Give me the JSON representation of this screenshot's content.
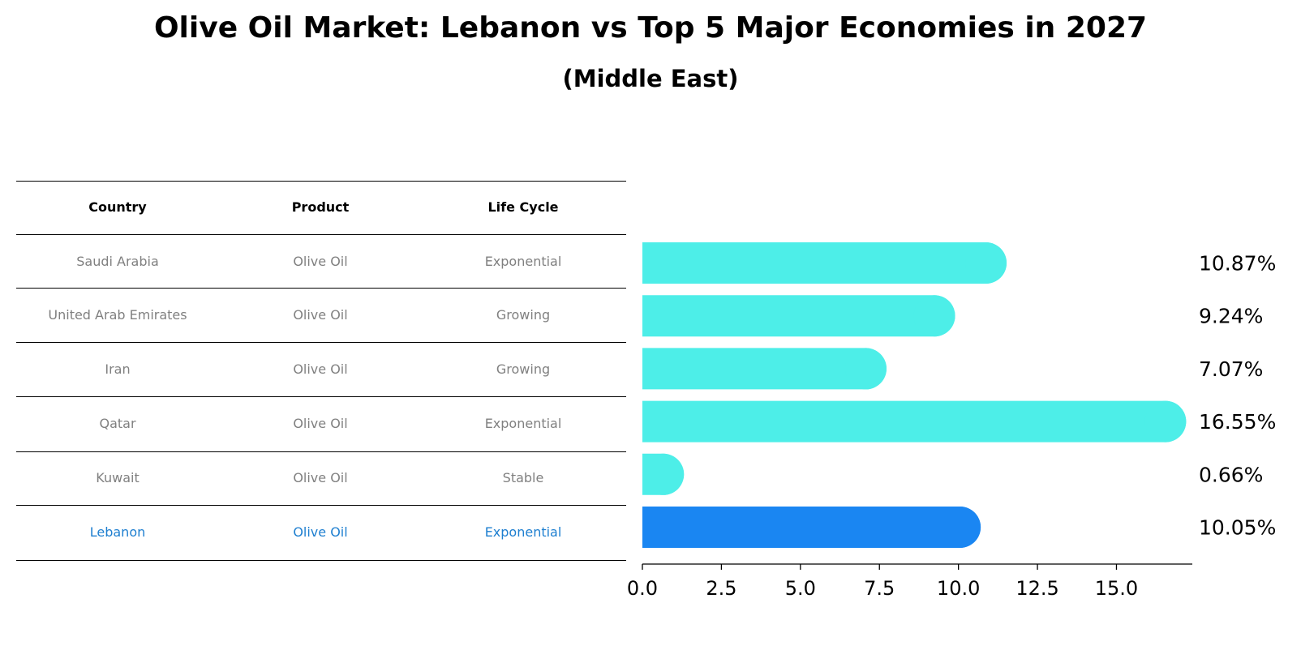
{
  "header": {
    "title": "Olive Oil Market: Lebanon vs Top 5 Major Economies in 2027",
    "subtitle": "(Middle East)"
  },
  "table": {
    "columns": [
      "Country",
      "Product",
      "Life Cycle"
    ],
    "rows": [
      {
        "country": "Saudi Arabia",
        "product": "Olive Oil",
        "life_cycle": "Exponential"
      },
      {
        "country": "United Arab Emirates",
        "product": "Olive Oil",
        "life_cycle": "Growing"
      },
      {
        "country": "Iran",
        "product": "Olive Oil",
        "life_cycle": "Growing"
      },
      {
        "country": "Qatar",
        "product": "Olive Oil",
        "life_cycle": "Exponential"
      },
      {
        "country": "Kuwait",
        "product": "Olive Oil",
        "life_cycle": "Stable"
      },
      {
        "country": "Lebanon",
        "product": "Olive Oil",
        "life_cycle": "Exponential"
      }
    ]
  },
  "chart_data": {
    "type": "bar",
    "orientation": "horizontal",
    "categories": [
      "Saudi Arabia",
      "United Arab Emirates",
      "Iran",
      "Qatar",
      "Kuwait",
      "Lebanon"
    ],
    "values": [
      10.87,
      9.24,
      7.07,
      16.55,
      0.66,
      10.05
    ],
    "value_labels": [
      "10.87%",
      "9.24%",
      "7.07%",
      "16.55%",
      "0.66%",
      "10.05%"
    ],
    "highlight": "Lebanon",
    "xlim": [
      0,
      17.4
    ],
    "xticks": [
      0.0,
      2.5,
      5.0,
      7.5,
      10.0,
      12.5,
      15.0
    ],
    "xtick_labels": [
      "0.0",
      "2.5",
      "5.0",
      "7.5",
      "10.0",
      "12.5",
      "15.0"
    ],
    "grid": false,
    "colors": {
      "bar": "#4deee8",
      "highlight_bar": "#1a86f2",
      "highlight_text": "#1e7fd0",
      "muted_text": "#808080"
    }
  }
}
